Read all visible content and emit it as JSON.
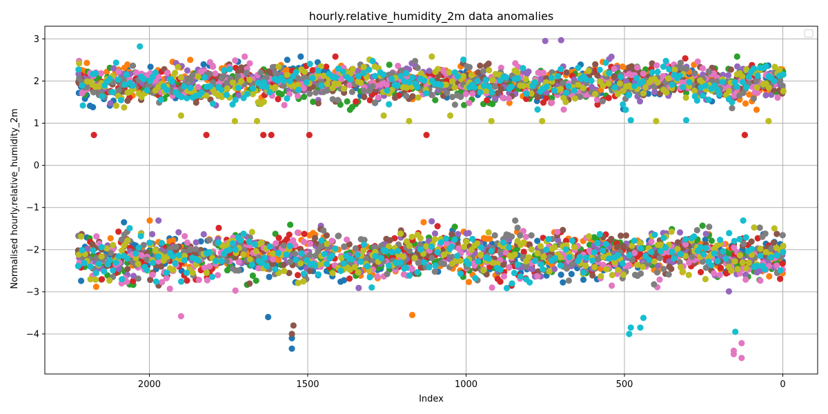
{
  "chart_data": {
    "type": "scatter",
    "title": "hourly.relative_humidity_2m data anomalies",
    "xlabel": "Index",
    "ylabel": "Normalised hourly.relative_humidity_2m",
    "xlim": [
      2330,
      -110
    ],
    "ylim": [
      -4.95,
      3.3
    ],
    "x_inverted": true,
    "xticks": [
      2000,
      1500,
      1000,
      500,
      0
    ],
    "yticks": [
      3,
      2,
      1,
      0,
      -1,
      -2,
      -3,
      -4
    ],
    "grid": true,
    "legend": "top-right",
    "legend_entries": [],
    "palette": [
      "#1f77b4",
      "#ff7f0e",
      "#2ca02c",
      "#d62728",
      "#9467bd",
      "#8c564b",
      "#e377c2",
      "#7f7f7f",
      "#bcbd22",
      "#17becf"
    ],
    "series_count": 10,
    "x_range": [
      0,
      2225
    ],
    "clusters": [
      {
        "name_hint": "upper",
        "center": 1.95,
        "spread": 0.3
      },
      {
        "name_hint": "lower",
        "center": -2.15,
        "spread": 0.4
      }
    ],
    "outliers": [
      {
        "x": 2175,
        "y": 0.72,
        "color": "#d62728"
      },
      {
        "x": 1820,
        "y": 0.72,
        "color": "#d62728"
      },
      {
        "x": 1640,
        "y": 0.72,
        "color": "#d62728"
      },
      {
        "x": 1615,
        "y": 0.72,
        "color": "#d62728"
      },
      {
        "x": 1495,
        "y": 0.72,
        "color": "#d62728"
      },
      {
        "x": 1125,
        "y": 0.72,
        "color": "#d62728"
      },
      {
        "x": 120,
        "y": 0.72,
        "color": "#d62728"
      },
      {
        "x": 2210,
        "y": 1.42,
        "color": "#17becf"
      },
      {
        "x": 1900,
        "y": 1.18,
        "color": "#bcbd22"
      },
      {
        "x": 1730,
        "y": 1.05,
        "color": "#bcbd22"
      },
      {
        "x": 1660,
        "y": 1.05,
        "color": "#bcbd22"
      },
      {
        "x": 1260,
        "y": 1.18,
        "color": "#bcbd22"
      },
      {
        "x": 1180,
        "y": 1.05,
        "color": "#bcbd22"
      },
      {
        "x": 1050,
        "y": 1.18,
        "color": "#bcbd22"
      },
      {
        "x": 920,
        "y": 1.05,
        "color": "#bcbd22"
      },
      {
        "x": 760,
        "y": 1.05,
        "color": "#bcbd22"
      },
      {
        "x": 480,
        "y": 1.07,
        "color": "#17becf"
      },
      {
        "x": 400,
        "y": 1.05,
        "color": "#bcbd22"
      },
      {
        "x": 305,
        "y": 1.07,
        "color": "#17becf"
      },
      {
        "x": 45,
        "y": 1.05,
        "color": "#bcbd22"
      },
      {
        "x": 2030,
        "y": 2.82,
        "color": "#17becf"
      },
      {
        "x": 750,
        "y": 2.95,
        "color": "#9467bd"
      },
      {
        "x": 700,
        "y": 2.97,
        "color": "#9467bd"
      },
      {
        "x": 1900,
        "y": -3.58,
        "color": "#e377c2"
      },
      {
        "x": 1550,
        "y": -4.35,
        "color": "#1f77b4"
      },
      {
        "x": 1550,
        "y": -4.1,
        "color": "#1f77b4"
      },
      {
        "x": 1550,
        "y": -4.0,
        "color": "#8c564b"
      },
      {
        "x": 1545,
        "y": -3.8,
        "color": "#8c564b"
      },
      {
        "x": 1625,
        "y": -3.6,
        "color": "#1f77b4"
      },
      {
        "x": 1170,
        "y": -3.55,
        "color": "#ff7f0e"
      },
      {
        "x": 485,
        "y": -4.0,
        "color": "#17becf"
      },
      {
        "x": 480,
        "y": -3.85,
        "color": "#17becf"
      },
      {
        "x": 450,
        "y": -3.85,
        "color": "#17becf"
      },
      {
        "x": 440,
        "y": -3.62,
        "color": "#17becf"
      },
      {
        "x": 130,
        "y": -4.57,
        "color": "#e377c2"
      },
      {
        "x": 130,
        "y": -4.22,
        "color": "#e377c2"
      },
      {
        "x": 155,
        "y": -4.48,
        "color": "#e377c2"
      },
      {
        "x": 155,
        "y": -4.4,
        "color": "#e377c2"
      },
      {
        "x": 150,
        "y": -3.95,
        "color": "#17becf"
      }
    ]
  }
}
